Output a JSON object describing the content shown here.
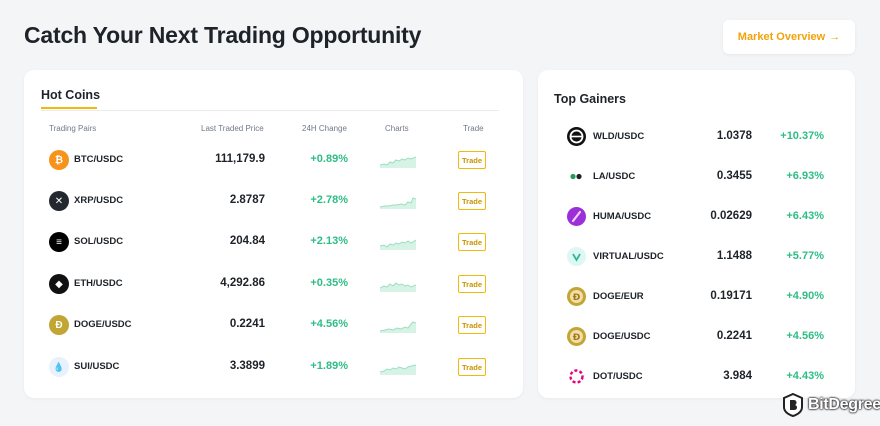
{
  "page": {
    "title": "Catch Your Next Trading Opportunity",
    "market_overview_label": "Market Overview",
    "market_overview_arrow": "→"
  },
  "hot_coins": {
    "tab_label": "Hot Coins",
    "columns": {
      "pairs": "Trading Pairs",
      "price": "Last Traded Price",
      "change": "24H Change",
      "charts": "Charts",
      "trade": "Trade"
    },
    "rows": [
      {
        "pair": "BTC/USDC",
        "price": "111,179.9",
        "change": "+0.89%",
        "trade": "Trade",
        "icon": "bitcoin-icon",
        "icon_color": "#f7931a",
        "glyph": "₿"
      },
      {
        "pair": "XRP/USDC",
        "price": "2.8787",
        "change": "+2.78%",
        "trade": "Trade",
        "icon": "xrp-icon",
        "icon_color": "#23292f",
        "glyph": "✕"
      },
      {
        "pair": "SOL/USDC",
        "price": "204.84",
        "change": "+2.13%",
        "trade": "Trade",
        "icon": "solana-icon",
        "icon_color": "#000000",
        "glyph": "≡"
      },
      {
        "pair": "ETH/USDC",
        "price": "4,292.86",
        "change": "+0.35%",
        "trade": "Trade",
        "icon": "ethereum-icon",
        "icon_color": "#111111",
        "glyph": "◆"
      },
      {
        "pair": "DOGE/USDC",
        "price": "0.2241",
        "change": "+4.56%",
        "trade": "Trade",
        "icon": "dogecoin-icon",
        "icon_color": "#c2a633",
        "glyph": "Ð"
      },
      {
        "pair": "SUI/USDC",
        "price": "3.3899",
        "change": "+1.89%",
        "trade": "Trade",
        "icon": "sui-icon",
        "icon_color": "#e8f1fc",
        "glyph": "💧"
      }
    ]
  },
  "top_gainers": {
    "title": "Top Gainers",
    "rows": [
      {
        "pair": "WLD/USDC",
        "price": "1.0378",
        "change": "+10.37%",
        "icon": "worldcoin-icon",
        "icon_color": "#111111"
      },
      {
        "pair": "LA/USDC",
        "price": "0.3455",
        "change": "+6.93%",
        "icon": "lagrange-icon",
        "icon_color": "#ffffff"
      },
      {
        "pair": "HUMA/USDC",
        "price": "0.02629",
        "change": "+6.43%",
        "icon": "huma-icon",
        "icon_color": "#8a2be2"
      },
      {
        "pair": "VIRTUAL/USDC",
        "price": "1.1488",
        "change": "+5.77%",
        "icon": "virtual-icon",
        "icon_color": "#dff7f1"
      },
      {
        "pair": "DOGE/EUR",
        "price": "0.19171",
        "change": "+4.90%",
        "icon": "dogecoin-icon",
        "icon_color": "#c2a633"
      },
      {
        "pair": "DOGE/USDC",
        "price": "0.2241",
        "change": "+4.56%",
        "icon": "dogecoin-icon",
        "icon_color": "#c2a633"
      },
      {
        "pair": "DOT/USDC",
        "price": "3.984",
        "change": "+4.43%",
        "icon": "polkadot-icon",
        "icon_color": "#e6007a"
      }
    ]
  },
  "watermark": {
    "text": "BitDegree"
  },
  "colors": {
    "accent": "#f0b90b",
    "positive": "#2ebd85",
    "background": "#f4f5f7"
  }
}
